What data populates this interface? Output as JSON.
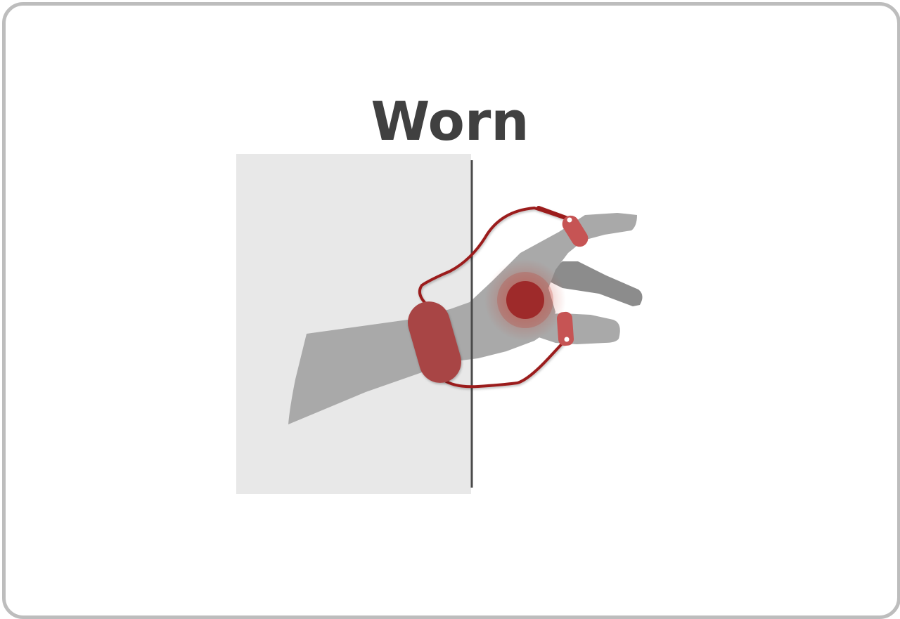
{
  "title": "Worn",
  "colors": {
    "border": "#bdbdbd",
    "title": "#404040",
    "sleeve_panel": "#e8e8e8",
    "divider": "#4a4a4a",
    "hand": "#a9a9a9",
    "hand_shadow_finger": "#8c8c8c",
    "device_body": "#a84444",
    "cable": "#9b1c1c",
    "pad": "#c65454",
    "pulse_glow": "#c0392b"
  },
  "icons": {
    "hand": "hand-icon",
    "wristband": "wristband-icon",
    "haptic_pulse": "haptic-pulse-icon"
  }
}
